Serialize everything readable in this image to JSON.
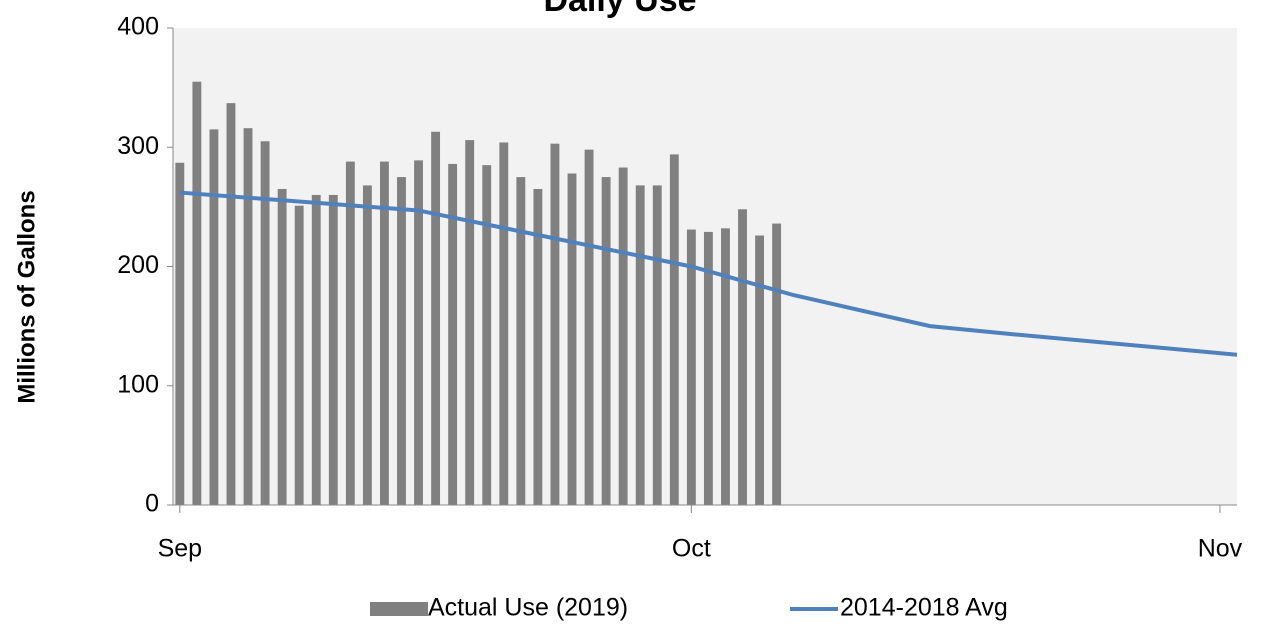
{
  "chart_data": {
    "type": "bar-line",
    "title": "Daily Use",
    "y_label": "Millions of Gallons",
    "xlim": [
      -0.4,
      62
    ],
    "xticks": [
      {
        "value": 0,
        "label": "Sep"
      },
      {
        "value": 30,
        "label": "Oct"
      },
      {
        "value": 61,
        "label": "Nov"
      }
    ],
    "ylim": [
      0,
      400
    ],
    "yticks": [
      0,
      100,
      200,
      300,
      400
    ],
    "legend": "bottom",
    "series": [
      {
        "name": "Actual Use (2019)",
        "type": "bar",
        "color": "#808080",
        "x": [
          0,
          1,
          2,
          3,
          4,
          5,
          6,
          7,
          8,
          9,
          10,
          11,
          12,
          13,
          14,
          15,
          16,
          17,
          18,
          19,
          20,
          21,
          22,
          23,
          24,
          25,
          26,
          27,
          28,
          29,
          30,
          31,
          32,
          33,
          34,
          35
        ],
        "values": [
          287,
          355,
          315,
          337,
          316,
          305,
          265,
          251,
          260,
          260,
          288,
          268,
          288,
          275,
          289,
          313,
          286,
          306,
          285,
          304,
          275,
          265,
          303,
          278,
          298,
          275,
          283,
          268,
          268,
          294,
          231,
          229,
          232,
          248,
          226,
          236
        ]
      },
      {
        "name": "2014-2018 Avg",
        "type": "line",
        "color": "#4f81bd",
        "x": [
          0,
          14,
          30,
          36,
          44,
          49,
          62
        ],
        "values": [
          262,
          247,
          200,
          176,
          150,
          143,
          126
        ]
      }
    ]
  }
}
